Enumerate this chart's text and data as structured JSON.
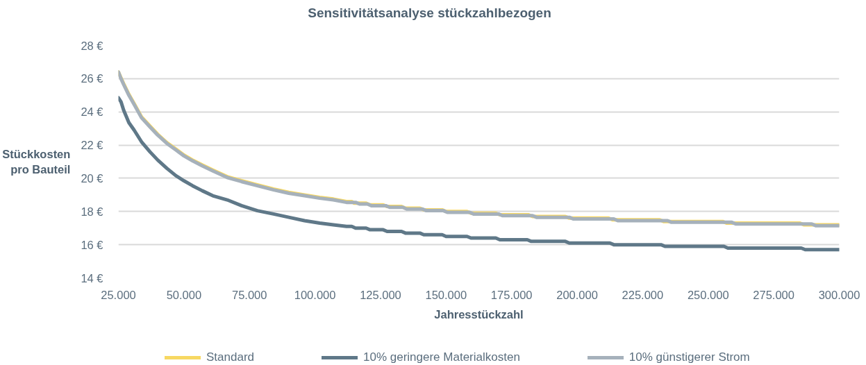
{
  "chart_data": {
    "type": "line",
    "title": "Sensitivitätsanalyse stückzahlbezogen",
    "xlabel": "Jahresstückzahl",
    "ylabel": "Stückkosten pro Bauteil",
    "xlim": [
      25000,
      300000
    ],
    "ylim": [
      14,
      28
    ],
    "xticks": [
      {
        "value": 25000,
        "label": "25.000"
      },
      {
        "value": 50000,
        "label": "50.000"
      },
      {
        "value": 75000,
        "label": "75.000"
      },
      {
        "value": 100000,
        "label": "100.000"
      },
      {
        "value": 125000,
        "label": "125.000"
      },
      {
        "value": 150000,
        "label": "150.000"
      },
      {
        "value": 175000,
        "label": "175.000"
      },
      {
        "value": 200000,
        "label": "200.000"
      },
      {
        "value": 225000,
        "label": "225.000"
      },
      {
        "value": 250000,
        "label": "250.000"
      },
      {
        "value": 275000,
        "label": "275.000"
      },
      {
        "value": 300000,
        "label": "300.000"
      }
    ],
    "yticks": [
      {
        "value": 14,
        "label": "14 €"
      },
      {
        "value": 16,
        "label": "16 €"
      },
      {
        "value": 18,
        "label": "18 €"
      },
      {
        "value": 20,
        "label": "20 €"
      },
      {
        "value": 22,
        "label": "22 €"
      },
      {
        "value": 24,
        "label": "24 €"
      },
      {
        "value": 26,
        "label": "26 €"
      },
      {
        "value": 28,
        "label": "28 €"
      }
    ],
    "grid": "y",
    "legend": "bottom",
    "line_style": "solid",
    "series": [
      {
        "name": "Standard",
        "color": "#f7d862",
        "x": [
          25000,
          26000,
          27000,
          29000,
          31000,
          33800,
          37000,
          40000,
          43500,
          47000,
          50000,
          53300,
          57000,
          61000,
          66500,
          72000,
          78000,
          84200,
          90000,
          96000,
          101800,
          107000,
          112000,
          114000,
          115000,
          119500,
          121000,
          126000,
          127500,
          133000,
          134500,
          140000,
          141500,
          148500,
          150000,
          158000,
          159500,
          169000,
          170500,
          181500,
          183000,
          195500,
          197000,
          212000,
          213500,
          231500,
          233000,
          255500,
          257000,
          285000,
          286500,
          300000
        ],
        "values": [
          26.4,
          26.05,
          25.7,
          25.05,
          24.5,
          23.7,
          23.15,
          22.65,
          22.15,
          21.75,
          21.4,
          21.1,
          20.8,
          20.5,
          20.1,
          19.85,
          19.6,
          19.35,
          19.15,
          19.0,
          18.85,
          18.75,
          18.6,
          18.6,
          18.5,
          18.5,
          18.4,
          18.4,
          18.3,
          18.3,
          18.2,
          18.2,
          18.1,
          18.1,
          18.0,
          18.0,
          17.9,
          17.9,
          17.8,
          17.8,
          17.7,
          17.7,
          17.6,
          17.6,
          17.5,
          17.5,
          17.4,
          17.4,
          17.3,
          17.3,
          17.2,
          17.2
        ]
      },
      {
        "name": "10% geringere Materialkosten",
        "color": "#5f7888",
        "x": [
          25000,
          26000,
          27000,
          29000,
          31000,
          33800,
          37000,
          40000,
          43500,
          47000,
          50000,
          53300,
          57000,
          61000,
          66500,
          72000,
          78000,
          84200,
          90000,
          96000,
          101800,
          107000,
          112000,
          114000,
          115500,
          119500,
          121000,
          126000,
          127500,
          133000,
          134500,
          140000,
          141500,
          148500,
          150000,
          158000,
          159500,
          169000,
          170500,
          181000,
          182500,
          195500,
          197000,
          212500,
          214000,
          232000,
          233500,
          256000,
          257500,
          285500,
          287000,
          300000
        ],
        "values": [
          24.85,
          24.6,
          24.1,
          23.35,
          22.9,
          22.2,
          21.6,
          21.1,
          20.6,
          20.15,
          19.85,
          19.55,
          19.25,
          18.95,
          18.7,
          18.35,
          18.05,
          17.85,
          17.65,
          17.45,
          17.3,
          17.2,
          17.1,
          17.1,
          17.0,
          17.0,
          16.9,
          16.9,
          16.8,
          16.8,
          16.7,
          16.7,
          16.6,
          16.6,
          16.5,
          16.5,
          16.4,
          16.4,
          16.3,
          16.3,
          16.2,
          16.2,
          16.1,
          16.1,
          16.0,
          16.0,
          15.9,
          15.9,
          15.8,
          15.8,
          15.7,
          15.7
        ]
      },
      {
        "name": "10% günstigerer Strom",
        "color": "#a6b1bb",
        "x": [
          25000,
          26000,
          27000,
          29000,
          31000,
          33800,
          37000,
          40000,
          43500,
          47000,
          50000,
          53300,
          57000,
          61000,
          66500,
          72000,
          78000,
          84200,
          90000,
          96000,
          101800,
          107000,
          112000,
          115500,
          117000,
          120000,
          121500,
          127000,
          128500,
          133500,
          135000,
          141000,
          142500,
          149000,
          150500,
          159000,
          160500,
          170000,
          171500,
          183000,
          184500,
          197000,
          198500,
          214000,
          215500,
          234500,
          236000,
          259000,
          260500,
          289500,
          291000,
          300000
        ],
        "values": [
          26.4,
          26.0,
          25.65,
          25.0,
          24.45,
          23.65,
          23.1,
          22.6,
          22.1,
          21.7,
          21.35,
          21.05,
          20.75,
          20.45,
          20.05,
          19.8,
          19.55,
          19.3,
          19.1,
          18.95,
          18.8,
          18.7,
          18.55,
          18.55,
          18.45,
          18.45,
          18.35,
          18.35,
          18.25,
          18.25,
          18.15,
          18.15,
          18.05,
          18.05,
          17.95,
          17.95,
          17.85,
          17.85,
          17.75,
          17.75,
          17.65,
          17.65,
          17.55,
          17.55,
          17.45,
          17.45,
          17.35,
          17.35,
          17.25,
          17.25,
          17.15,
          17.15
        ]
      }
    ]
  }
}
